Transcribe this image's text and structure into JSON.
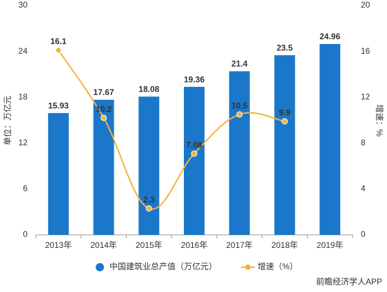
{
  "chart_data": {
    "type": "bar",
    "categories": [
      "2013年",
      "2014年",
      "2015年",
      "2016年",
      "2017年",
      "2018年",
      "2019年"
    ],
    "series": [
      {
        "name": "中国建筑业总产值（万亿元）",
        "type": "bar",
        "color": "#1a77c9",
        "values": [
          15.93,
          17.67,
          18.08,
          19.36,
          21.4,
          23.5,
          24.96
        ]
      },
      {
        "name": "增速（%）",
        "type": "line",
        "axis": "y2",
        "color": "#f0b43c",
        "values": [
          16.1,
          10.2,
          2.3,
          7.08,
          10.5,
          9.9,
          null
        ]
      }
    ],
    "ylabel": "单位：万亿元",
    "y2label": "增速：%",
    "ylim": [
      0,
      30
    ],
    "yticks": [
      0,
      6,
      12,
      18,
      24,
      30
    ],
    "y2lim": [
      0,
      20
    ],
    "y2ticks": [
      0,
      4,
      8,
      12,
      16,
      20
    ],
    "source": "前瞻经济学人APP"
  }
}
